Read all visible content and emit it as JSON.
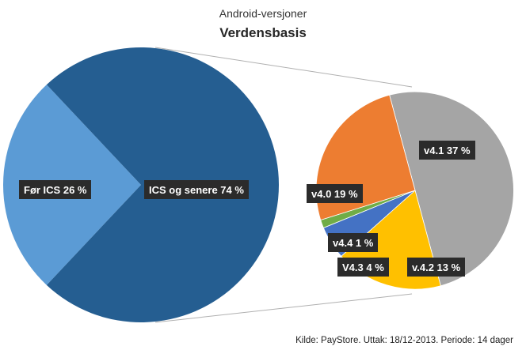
{
  "chart_data": [
    {
      "type": "pie",
      "title": "Android-versjoner",
      "subtitle": "Verdensbasis",
      "categories": [
        "Før ICS",
        "ICS og senere"
      ],
      "values": [
        26,
        74
      ],
      "labels": [
        "Før ICS   26 %",
        "ICS og senere   74 %"
      ],
      "colors": [
        "#5b9bd5",
        "#255e91"
      ]
    },
    {
      "type": "pie",
      "categories": [
        "v4.1",
        "v.4.2",
        "V4.3",
        "v4.4",
        "v4.0"
      ],
      "values": [
        37,
        13,
        4,
        1,
        19
      ],
      "labels": [
        "v4.1   37 %",
        "v.4.2   13 %",
        "V4.3   4 %",
        "v4.4   1 %",
        "v4.0   19 %"
      ],
      "colors": [
        "#a5a5a5",
        "#ffc000",
        "#4472c4",
        "#70ad47",
        "#ed7d31"
      ]
    }
  ],
  "source_note": "Kilde: PayStore. Uttak: 18/12-2013. Periode: 14 dager"
}
